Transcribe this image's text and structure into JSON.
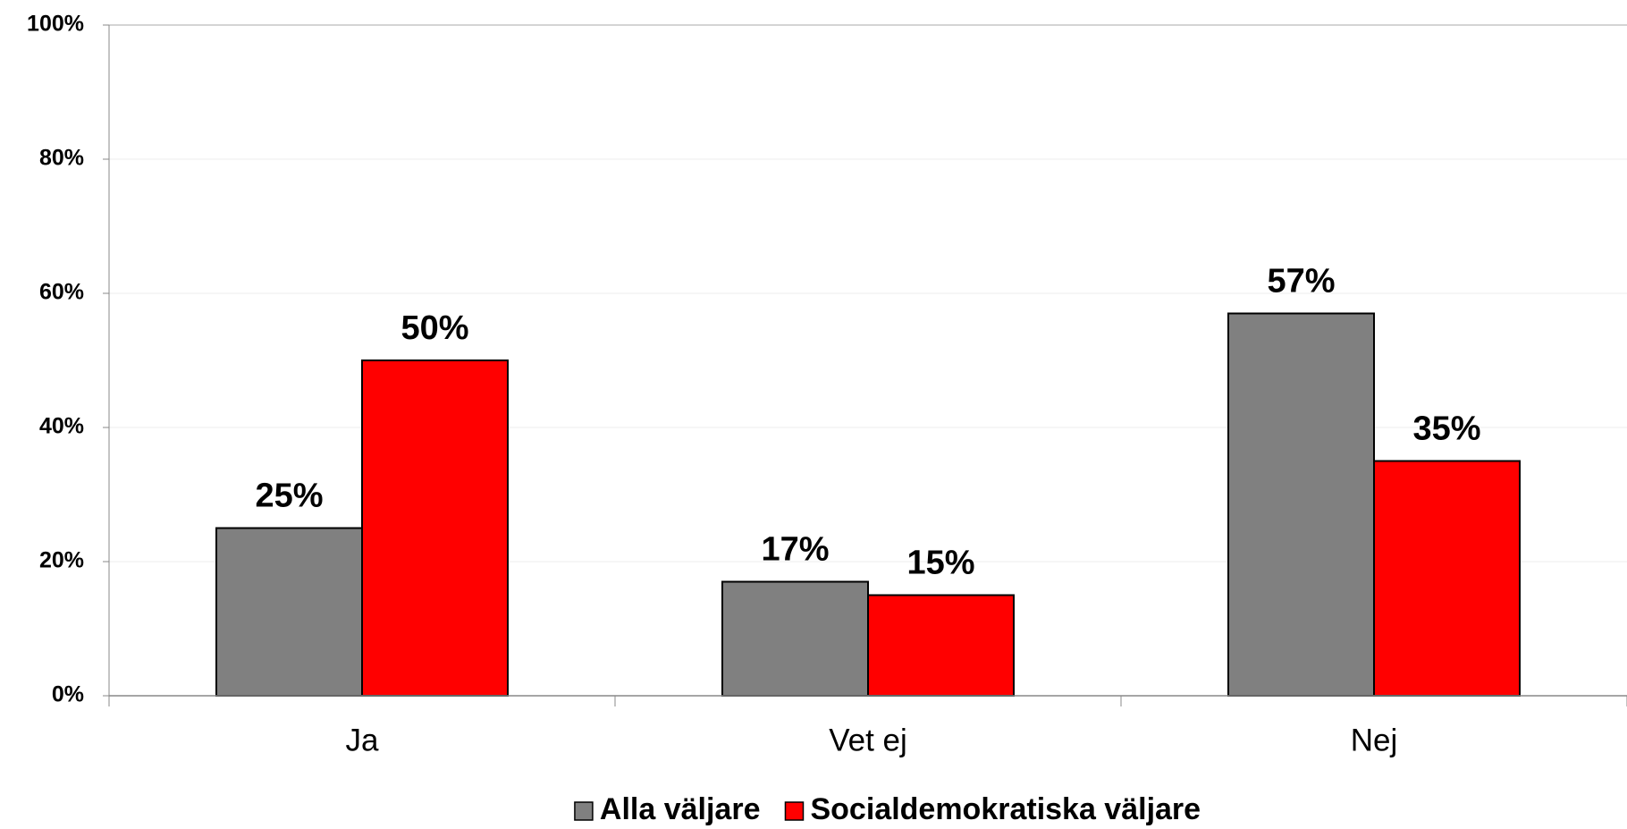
{
  "chart_data": {
    "type": "bar",
    "categories": [
      "Ja",
      "Vet ej",
      "Nej"
    ],
    "series": [
      {
        "name": "Alla väljare",
        "color": "#808080",
        "values": [
          25,
          17,
          57
        ],
        "value_labels": [
          "25%",
          "17%",
          "57%"
        ]
      },
      {
        "name": "Socialdemokratiska väljare",
        "color": "#ff0000",
        "values": [
          50,
          15,
          35
        ],
        "value_labels": [
          "50%",
          "15%",
          "35%"
        ]
      }
    ],
    "ylim": [
      0,
      100
    ],
    "yticks": [
      {
        "value": 0,
        "label": "0%"
      },
      {
        "value": 20,
        "label": "20%"
      },
      {
        "value": 40,
        "label": "40%"
      },
      {
        "value": 60,
        "label": "60%"
      },
      {
        "value": 80,
        "label": "80%"
      },
      {
        "value": 100,
        "label": "100%"
      }
    ],
    "grid": true,
    "legend": "bottom"
  }
}
